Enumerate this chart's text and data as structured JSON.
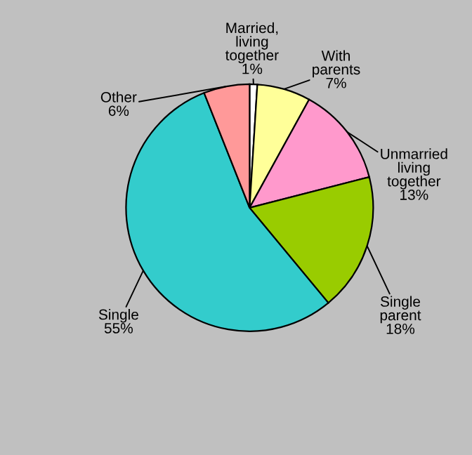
{
  "chart_data": {
    "type": "pie",
    "categories": [
      "Married,\nliving\ntogether",
      "With\nparents",
      "Unmarried\nliving\ntogether",
      "Single\nparent",
      "Single",
      "Other"
    ],
    "values": [
      1,
      7,
      13,
      18,
      55,
      6
    ],
    "colors": [
      "#ffffff",
      "#ffff99",
      "#ff99cc",
      "#99cc00",
      "#33cccc",
      "#ff9999"
    ],
    "value_labels": [
      "1%",
      "7%",
      "13%",
      "18%",
      "55%",
      "6%"
    ]
  }
}
